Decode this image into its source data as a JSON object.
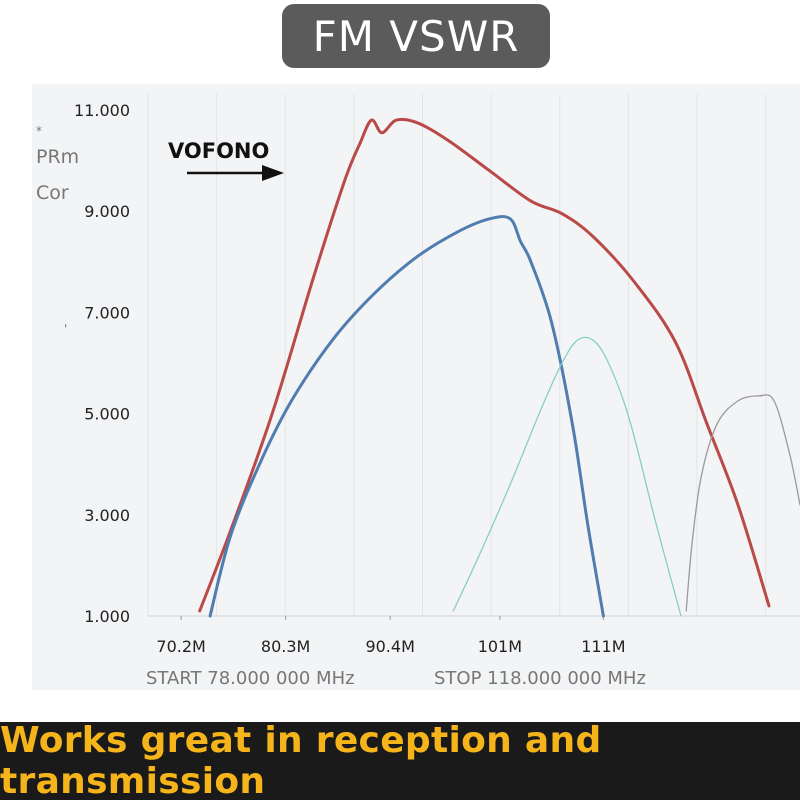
{
  "title": "FM VSWR",
  "side_labels": {
    "marker": "*",
    "line1": "PRm",
    "line2": "Cor",
    "marker2": "'"
  },
  "brand": {
    "label": "VOFONO"
  },
  "footer": {
    "start": "START 78.000 000 MHz",
    "stop": "STOP 118.000 000 MHz"
  },
  "banner": {
    "text": "Works great in reception and transmission"
  },
  "colors": {
    "red": "#b94a48",
    "blue": "#4f7db0",
    "teal": "#88cfc4",
    "gray": "#9a9a9a",
    "banner_text": "#f5b51a",
    "title_bg": "#5b5b5b"
  },
  "chart_data": {
    "type": "line",
    "y_ticks": [
      "1.000",
      "3.000",
      "5.000",
      "7.000",
      "9.000",
      "11.000"
    ],
    "x_ticks": [
      "70.2M",
      "80.3M",
      "90.4M",
      "101M",
      "111M"
    ],
    "x_tick_values": [
      70.2,
      80.3,
      90.4,
      101,
      111
    ],
    "ylim": [
      1,
      11
    ],
    "xlim": [
      67,
      130
    ],
    "series": [
      {
        "color_key": "red",
        "x": [
          72,
          75,
          79,
          83,
          86,
          87.5,
          88.6,
          89.6,
          91,
          93,
          96,
          100,
          104,
          107,
          110,
          114,
          118,
          121,
          124,
          127
        ],
        "y": [
          1.1,
          2.7,
          5.0,
          7.7,
          9.6,
          10.35,
          10.8,
          10.55,
          10.8,
          10.75,
          10.4,
          9.8,
          9.2,
          8.95,
          8.5,
          7.6,
          6.4,
          4.8,
          3.2,
          1.2
        ]
      },
      {
        "color_key": "blue",
        "x": [
          73,
          75,
          78,
          81,
          85,
          89,
          93,
          97,
          100,
          102,
          103,
          104,
          106,
          108,
          109.5,
          111
        ],
        "y": [
          1.0,
          2.6,
          4.1,
          5.3,
          6.5,
          7.4,
          8.1,
          8.6,
          8.85,
          8.85,
          8.4,
          8.0,
          6.8,
          4.8,
          2.8,
          1.0
        ]
      },
      {
        "color_key": "teal",
        "x": [
          96.5,
          99,
          102,
          105,
          107,
          108.5,
          110,
          111.5,
          113.5,
          116,
          118.5
        ],
        "y": [
          1.1,
          2.2,
          3.6,
          5.1,
          6.0,
          6.45,
          6.45,
          6.0,
          4.9,
          2.9,
          1.0
        ]
      },
      {
        "color_key": "gray",
        "x": [
          119,
          119.6,
          120.5,
          122,
          124,
          126,
          127.5,
          129,
          130
        ],
        "y": [
          1.1,
          2.5,
          3.8,
          4.8,
          5.25,
          5.35,
          5.25,
          4.2,
          3.2
        ]
      }
    ]
  }
}
